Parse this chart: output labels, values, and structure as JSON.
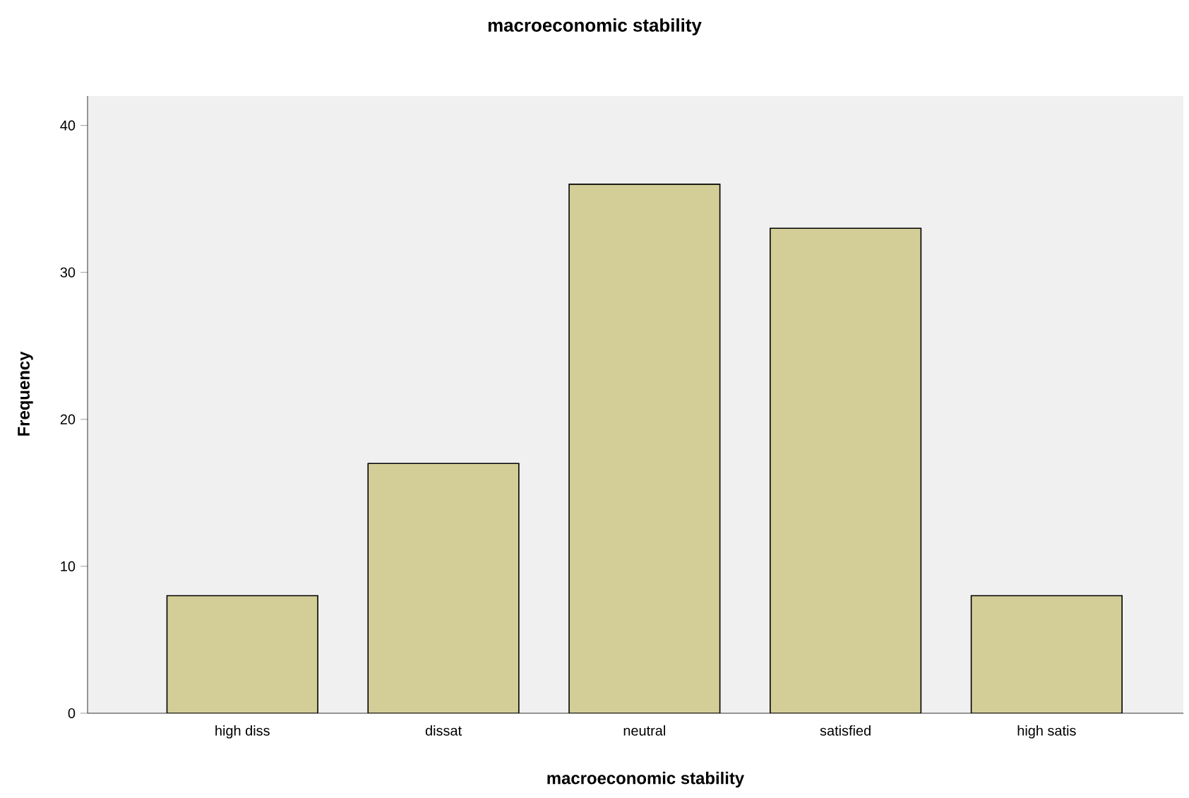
{
  "chart_data": {
    "type": "bar",
    "title": "macroeconomic stability",
    "xlabel": "macroeconomic stability",
    "ylabel": "Frequency",
    "categories": [
      "high diss",
      "dissat",
      "neutral",
      "satisfied",
      "high satis"
    ],
    "values": [
      8,
      17,
      36,
      33,
      8
    ],
    "color": "#d3ce97",
    "ylim": [
      0,
      42
    ],
    "yticks": [
      0,
      10,
      20,
      30,
      40
    ],
    "grid": false
  }
}
